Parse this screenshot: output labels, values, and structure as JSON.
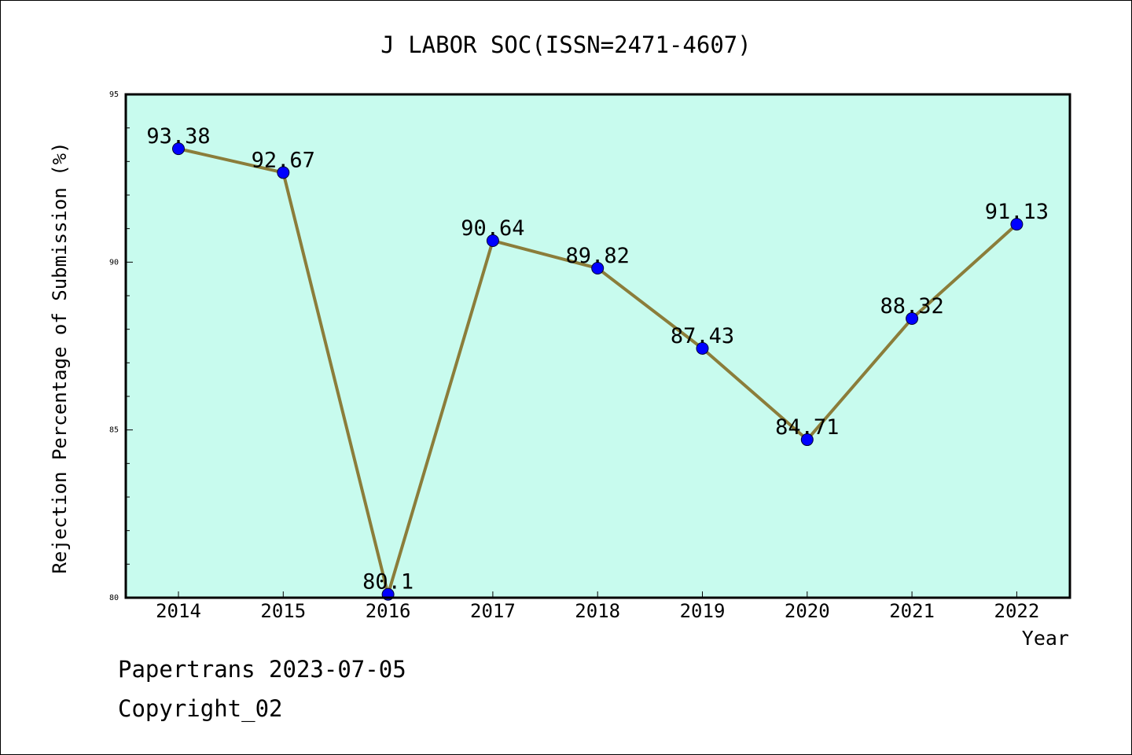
{
  "chart_data": {
    "type": "line",
    "title": "J LABOR SOC(ISSN=2471-4607)",
    "xlabel": "Year",
    "ylabel": "Rejection Percentage of Submission (%)",
    "categories": [
      "2014",
      "2015",
      "2016",
      "2017",
      "2018",
      "2019",
      "2020",
      "2021",
      "2022"
    ],
    "series": [
      {
        "values": [
          93.38,
          92.67,
          80.1,
          90.64,
          89.82,
          87.43,
          84.71,
          88.32,
          91.13
        ]
      }
    ],
    "data_labels": [
      "93.38",
      "92.67",
      "80.1",
      "90.64",
      "89.82",
      "87.43",
      "84.71",
      "88.32",
      "91.13"
    ],
    "ylim": [
      80,
      95
    ],
    "yticks": [
      "80",
      "85",
      "90",
      "95"
    ],
    "grid": false,
    "colors": {
      "plot_background": "#c8fbee",
      "line": "#8b7d3a",
      "marker": "#0000ff"
    }
  },
  "footer": {
    "line1": "Papertrans 2023-07-05",
    "line2": "Copyright_02"
  }
}
